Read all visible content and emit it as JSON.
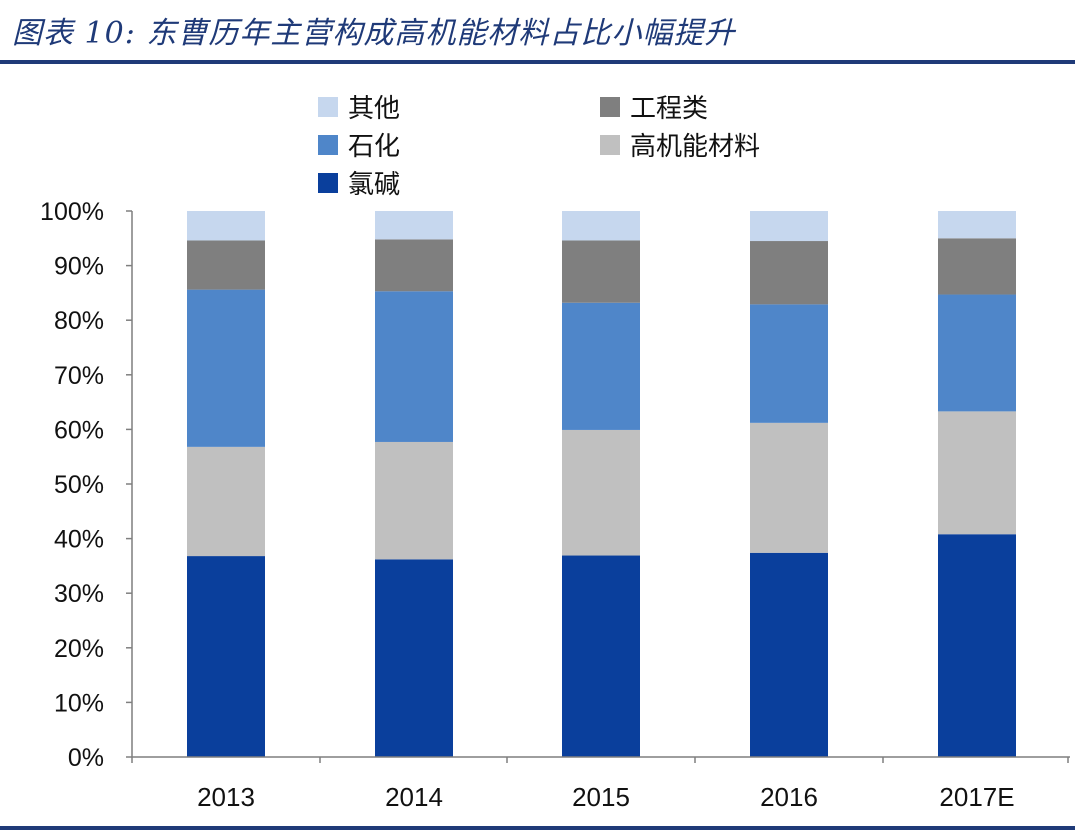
{
  "title": "图表 10: 东曹历年主营构成高机能材料占比小幅提升",
  "chart_data": {
    "type": "bar",
    "stacked": true,
    "categories": [
      "2013",
      "2014",
      "2015",
      "2016",
      "2017E"
    ],
    "series": [
      {
        "name": "氯碱",
        "color": "#0a3f9c",
        "values": [
          36.8,
          36.2,
          36.9,
          37.4,
          40.8
        ]
      },
      {
        "name": "高机能材料",
        "color": "#c0c0c0",
        "values": [
          20.0,
          21.5,
          23.0,
          23.8,
          22.5
        ]
      },
      {
        "name": "石化",
        "color": "#4f86c9",
        "values": [
          28.8,
          27.6,
          23.3,
          21.7,
          21.4
        ]
      },
      {
        "name": "工程类",
        "color": "#7f7f7f",
        "values": [
          9.0,
          9.5,
          11.4,
          11.6,
          10.3
        ]
      },
      {
        "name": "其他",
        "color": "#c6d7ee",
        "values": [
          5.4,
          5.2,
          5.4,
          5.5,
          5.0
        ]
      }
    ],
    "yticks": [
      "0%",
      "10%",
      "20%",
      "30%",
      "40%",
      "50%",
      "60%",
      "70%",
      "80%",
      "90%",
      "100%"
    ],
    "ylim": [
      0,
      100
    ],
    "xlabel": "",
    "ylabel": "",
    "grid": false,
    "legend_position": "top",
    "legend_order": [
      "其他",
      "工程类",
      "石化",
      "高机能材料",
      "氯碱"
    ]
  }
}
